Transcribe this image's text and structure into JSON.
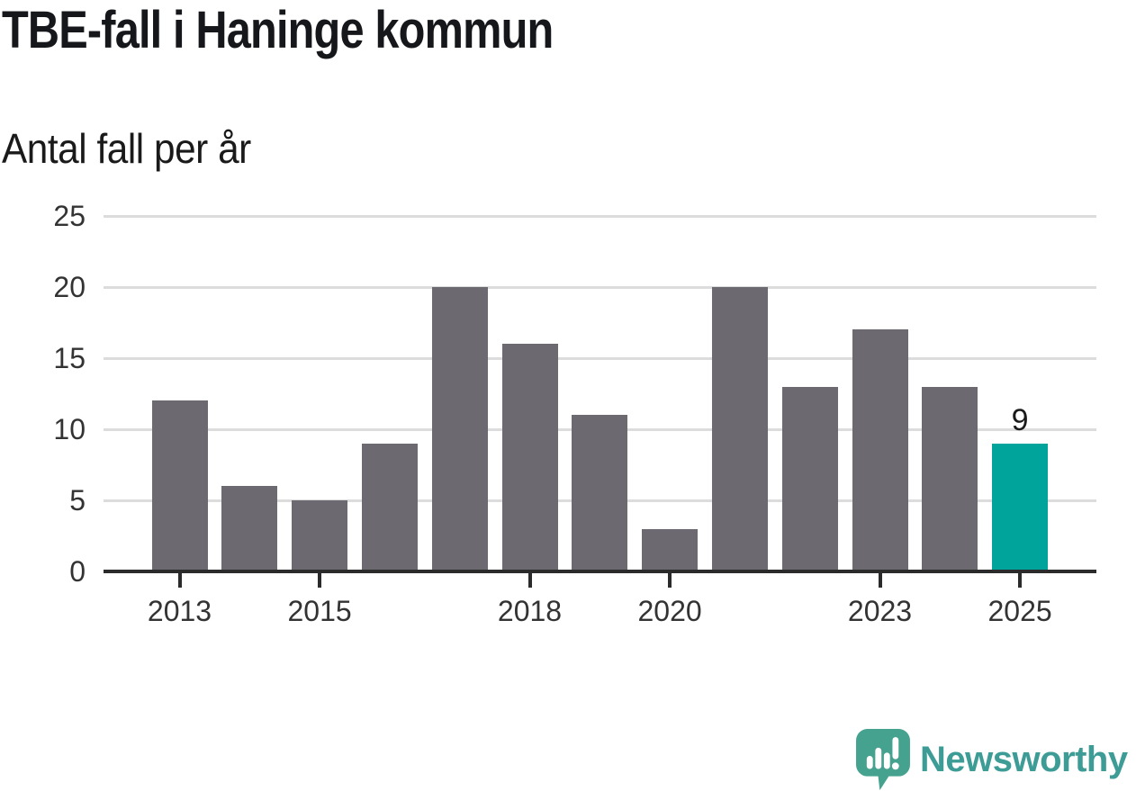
{
  "chart_data": {
    "type": "bar",
    "title": "TBE-fall i Haninge kommun",
    "subtitle": "Antal fall per år",
    "categories": [
      "2013",
      "2014",
      "2015",
      "2016",
      "2017",
      "2018",
      "2019",
      "2020",
      "2021",
      "2022",
      "2023",
      "2024",
      "2025"
    ],
    "values": [
      12,
      6,
      5,
      9,
      20,
      16,
      11,
      3,
      20,
      13,
      17,
      13,
      9
    ],
    "xlabel": "",
    "ylabel": "Antal fall per år",
    "ylim": [
      0,
      25
    ],
    "yticks": [
      0,
      5,
      10,
      15,
      20,
      25
    ],
    "xtick_labels": [
      "2013",
      "2015",
      "2018",
      "2020",
      "2023",
      "2025"
    ],
    "grid": "horizontal",
    "legend": "none",
    "bar_color": "#6C6A70",
    "highlight": {
      "category": "2025",
      "color": "#00A49A",
      "value_label": "9"
    },
    "gridline_color": "#DCDCDC",
    "axis_color": "#2B2B2B",
    "tick_label_color": "#333333"
  },
  "footer": {
    "brand": "Newsworthy",
    "brand_color": "#3D9C95",
    "logo_color": "#45A28F",
    "logo_icon": "speech-bubble-with-bar-chart-and-exclamation"
  }
}
